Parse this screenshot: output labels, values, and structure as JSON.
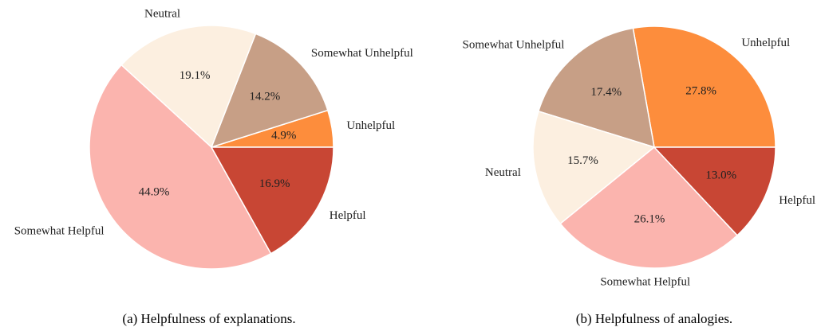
{
  "chart_data": [
    {
      "type": "pie",
      "caption": "(a)  Helpfulness of explanations.",
      "categories": [
        "Unhelpful",
        "Somewhat Unhelpful",
        "Neutral",
        "Somewhat Helpful",
        "Helpful"
      ],
      "values": [
        4.9,
        14.2,
        19.1,
        44.9,
        16.9
      ],
      "value_labels": [
        "4.9%",
        "14.2%",
        "19.1%",
        "44.9%",
        "16.9%"
      ],
      "colors": [
        "#fd8d3c",
        "#c79f86",
        "#fcefe0",
        "#fbb4ae",
        "#c84634"
      ]
    },
    {
      "type": "pie",
      "caption": "(b)  Helpfulness of analogies.",
      "categories": [
        "Unhelpful",
        "Somewhat Unhelpful",
        "Neutral",
        "Somewhat Helpful",
        "Helpful"
      ],
      "values": [
        27.8,
        17.4,
        15.7,
        26.1,
        13.0
      ],
      "value_labels": [
        "27.8%",
        "17.4%",
        "15.7%",
        "26.1%",
        "13.0%"
      ],
      "colors": [
        "#fd8d3c",
        "#c79f86",
        "#fcefe0",
        "#fbb4ae",
        "#c84634"
      ]
    }
  ]
}
